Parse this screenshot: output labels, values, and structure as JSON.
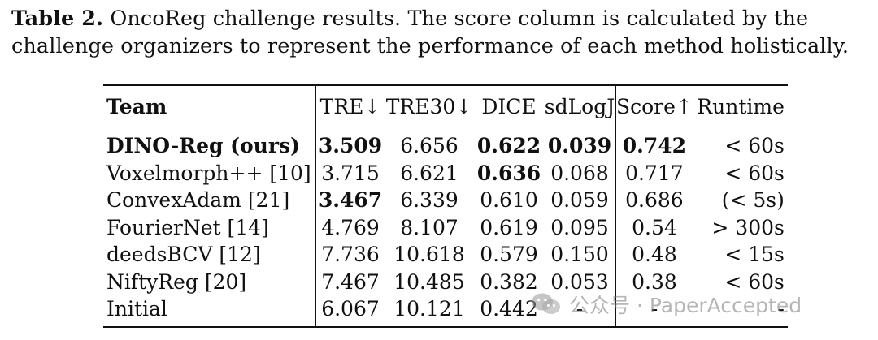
{
  "caption": {
    "label": "Table 2.",
    "text": " OncoReg challenge results. The score column is calculated by the challenge organizers to represent the performance of each method holistically."
  },
  "table": {
    "headers": [
      "Team",
      "TRE↓",
      "TRE30↓",
      "DICE",
      "sdLogJ",
      "Score↑",
      "Runtime"
    ],
    "rows": [
      {
        "team": "DINO-Reg (ours)",
        "tre": "3.509",
        "tre30": "6.656",
        "dice": "0.622",
        "sdlogj": "0.039",
        "score": "0.742",
        "runtime": "< 60s"
      },
      {
        "team": "Voxelmorph++ [10]",
        "tre": "3.715",
        "tre30": "6.621",
        "dice": "0.636",
        "sdlogj": "0.068",
        "score": "0.717",
        "runtime": "< 60s"
      },
      {
        "team": "ConvexAdam [21]",
        "tre": "3.467",
        "tre30": "6.339",
        "dice": "0.610",
        "sdlogj": "0.059",
        "score": "0.686",
        "runtime": "(< 5s)"
      },
      {
        "team": "FourierNet [14]",
        "tre": "4.769",
        "tre30": "8.107",
        "dice": "0.619",
        "sdlogj": "0.095",
        "score": "0.54",
        "runtime": "> 300s"
      },
      {
        "team": "deedsBCV [12]",
        "tre": "7.736",
        "tre30": "10.618",
        "dice": "0.579",
        "sdlogj": "0.150",
        "score": "0.48",
        "runtime": "< 15s"
      },
      {
        "team": "NiftyReg [20]",
        "tre": "7.467",
        "tre30": "10.485",
        "dice": "0.382",
        "sdlogj": "0.053",
        "score": "0.38",
        "runtime": "< 60s"
      },
      {
        "team": "Initial",
        "tre": "6.067",
        "tre30": "10.121",
        "dice": "0.442",
        "sdlogj": "-",
        "score": "-",
        "runtime": "-"
      }
    ]
  },
  "watermark": {
    "icon": "wechat-icon",
    "text": "公众号 · PaperAccepted"
  }
}
